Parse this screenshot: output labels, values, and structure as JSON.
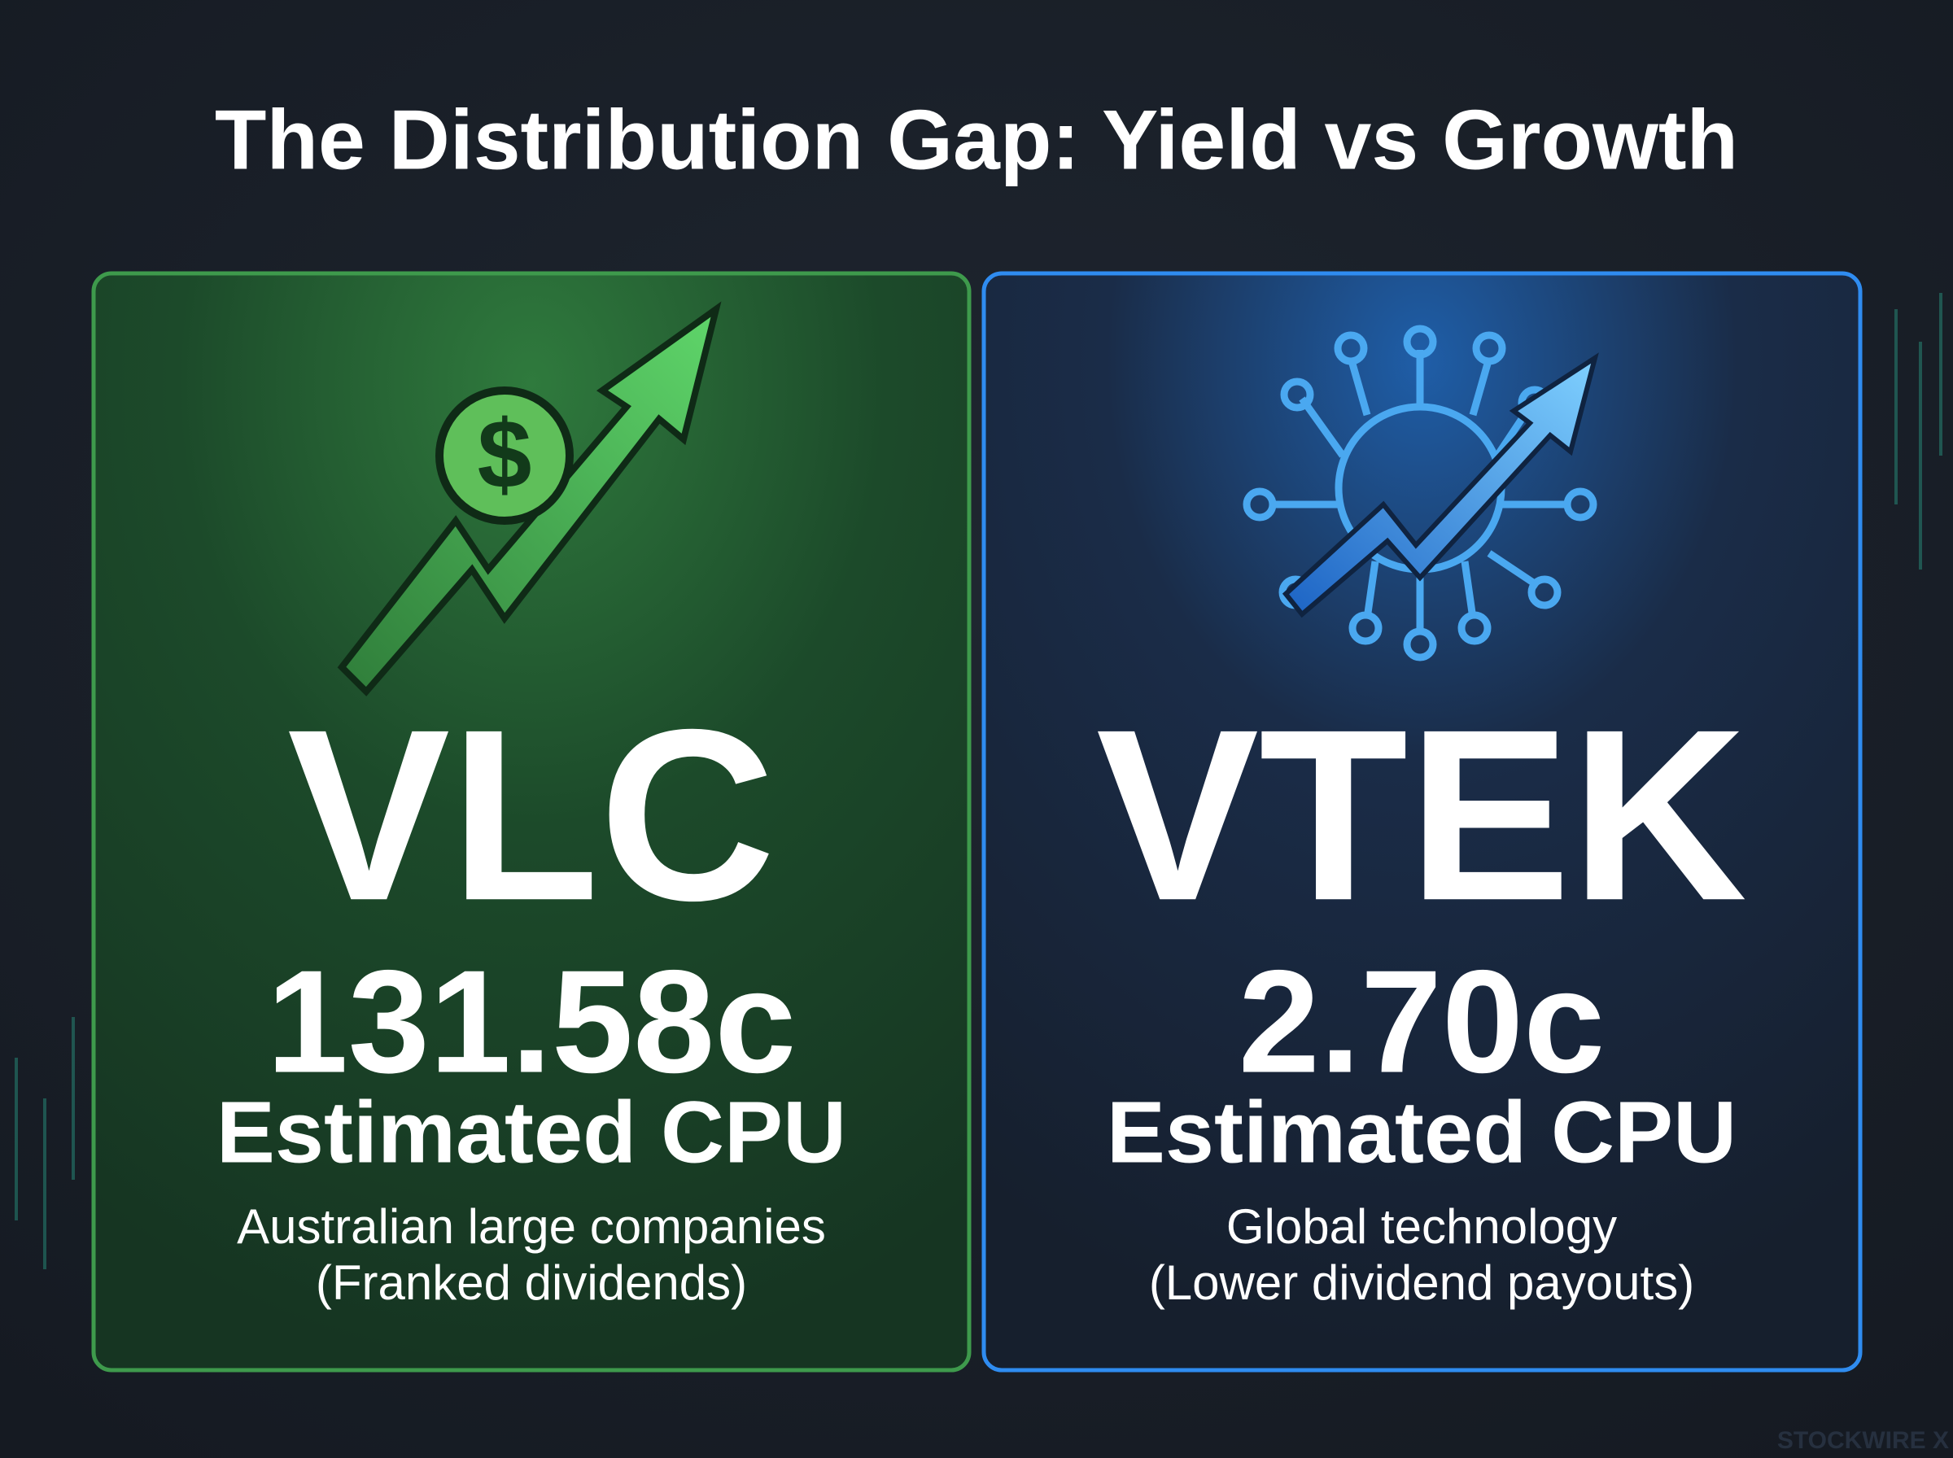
{
  "title": "The Distribution Gap: Yield vs Growth",
  "cards": [
    {
      "ticker": "VLC",
      "value": "131.58c",
      "label": "Estimated CPU",
      "description": [
        "Australian large companies",
        "(Franked dividends)"
      ]
    },
    {
      "ticker": "VTEK",
      "value": "2.70c",
      "label": "Estimated CPU",
      "description": [
        "Global technology",
        "(Lower dividend payouts)"
      ]
    }
  ],
  "watermark": "STOCKWIRE X"
}
